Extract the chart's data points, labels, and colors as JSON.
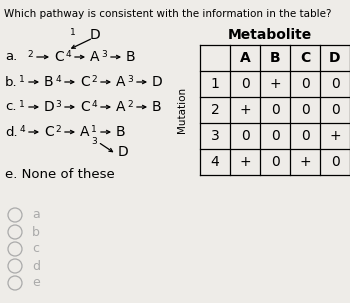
{
  "question": "Which pathway is consistent with the information in the table?",
  "bg_color": "#eeece8",
  "metabolite_title": "Metabolite",
  "table_col_headers": [
    "A",
    "B",
    "C",
    "D"
  ],
  "table_row_headers": [
    "1",
    "2",
    "3",
    "4"
  ],
  "table_data": [
    [
      "0",
      "+",
      "0",
      "0"
    ],
    [
      "+",
      "0",
      "0",
      "0"
    ],
    [
      "0",
      "0",
      "0",
      "+"
    ],
    [
      "+",
      "0",
      "+",
      "0"
    ]
  ],
  "choices": [
    "a",
    "b",
    "c",
    "d",
    "e"
  ],
  "font_color": "#000000",
  "choice_color": "#aaaaaa",
  "question_fontsize": 7.5,
  "label_fontsize": 9.5,
  "letter_fontsize": 10,
  "super_fontsize": 6.5,
  "table_header_fontsize": 10,
  "table_data_fontsize": 10,
  "mutation_fontsize": 7.5,
  "metabolite_fontsize": 10,
  "choice_fontsize": 9,
  "pathway_a_label": "a.",
  "pathway_b_label": "b.",
  "pathway_c_label": "c.",
  "pathway_d_label": "d.",
  "pathway_e_label": "e. None of these",
  "D_label": "D",
  "mutation_label": "Mutation"
}
